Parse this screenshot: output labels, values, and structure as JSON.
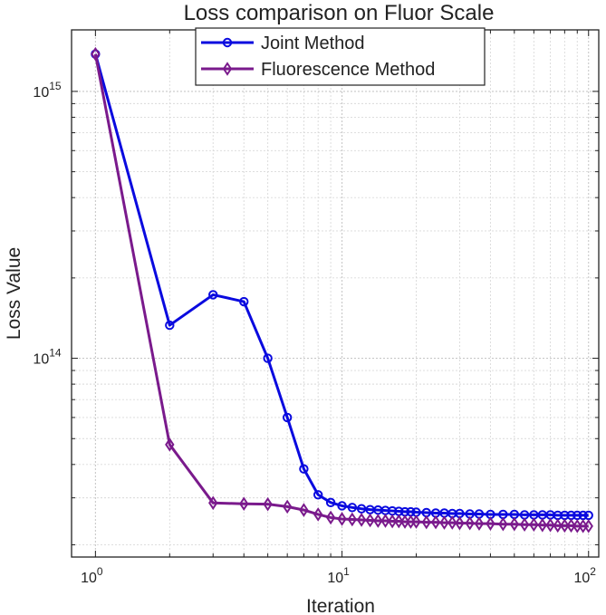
{
  "chart_data": {
    "type": "line",
    "title": "Loss comparison on Fluor Scale",
    "xlabel": "Iteration",
    "ylabel": "Loss Value",
    "xscale": "log",
    "yscale": "log",
    "xlim": [
      0.8,
      110
    ],
    "ylim": [
      18000000000000,
      1700000000000000
    ],
    "grid": true,
    "legend_position": "top-center",
    "x_ticks": [
      {
        "base": "10",
        "exp": "0"
      },
      {
        "base": "10",
        "exp": "1"
      },
      {
        "base": "10",
        "exp": "2"
      }
    ],
    "y_ticks": [
      {
        "base": "10",
        "exp": "14"
      },
      {
        "base": "10",
        "exp": "15"
      }
    ],
    "series": [
      {
        "name": "Joint Method",
        "color": "#0a0adf",
        "marker": "circle",
        "x": [
          1,
          2,
          3,
          4,
          5,
          6,
          7,
          8,
          9,
          10,
          11,
          12,
          13,
          14,
          15,
          16,
          17,
          18,
          19,
          20,
          22,
          24,
          26,
          28,
          30,
          33,
          36,
          40,
          45,
          50,
          55,
          60,
          65,
          70,
          75,
          80,
          85,
          90,
          95,
          100
        ],
        "y": [
          1380000000000000.0,
          133000000000000.0,
          173000000000000.0,
          163000000000000.0,
          100000000000000.0,
          60000000000000.0,
          38500000000000.0,
          30800000000000.0,
          28800000000000.0,
          28000000000000.0,
          27600000000000.0,
          27300000000000.0,
          27100000000000.0,
          27000000000000.0,
          26900000000000.0,
          26800000000000.0,
          26700000000000.0,
          26600000000000.0,
          26600000000000.0,
          26500000000000.0,
          26400000000000.0,
          26300000000000.0,
          26300000000000.0,
          26200000000000.0,
          26200000000000.0,
          26100000000000.0,
          26100000000000.0,
          26000000000000.0,
          26000000000000.0,
          26000000000000.0,
          25900000000000.0,
          25900000000000.0,
          25900000000000.0,
          25900000000000.0,
          25800000000000.0,
          25800000000000.0,
          25800000000000.0,
          25800000000000.0,
          25800000000000.0,
          25800000000000.0
        ]
      },
      {
        "name": "Fluorescence Method",
        "color": "#7a1a8c",
        "marker": "diamond",
        "x": [
          1,
          2,
          3,
          4,
          5,
          6,
          7,
          8,
          9,
          10,
          11,
          12,
          13,
          14,
          15,
          16,
          17,
          18,
          19,
          20,
          22,
          24,
          26,
          28,
          30,
          33,
          36,
          40,
          45,
          50,
          55,
          60,
          65,
          70,
          75,
          80,
          85,
          90,
          95,
          100
        ],
        "y": [
          1380000000000000.0,
          47500000000000.0,
          28700000000000.0,
          28500000000000.0,
          28400000000000.0,
          27800000000000.0,
          27000000000000.0,
          26000000000000.0,
          25300000000000.0,
          25000000000000.0,
          24900000000000.0,
          24800000000000.0,
          24700000000000.0,
          24600000000000.0,
          24600000000000.0,
          24500000000000.0,
          24500000000000.0,
          24400000000000.0,
          24400000000000.0,
          24400000000000.0,
          24300000000000.0,
          24300000000000.0,
          24200000000000.0,
          24200000000000.0,
          24100000000000.0,
          24100000000000.0,
          24000000000000.0,
          24000000000000.0,
          23900000000000.0,
          23900000000000.0,
          23800000000000.0,
          23800000000000.0,
          23700000000000.0,
          23700000000000.0,
          23600000000000.0,
          23600000000000.0,
          23600000000000.0,
          23500000000000.0,
          23500000000000.0,
          23500000000000.0
        ]
      }
    ]
  }
}
